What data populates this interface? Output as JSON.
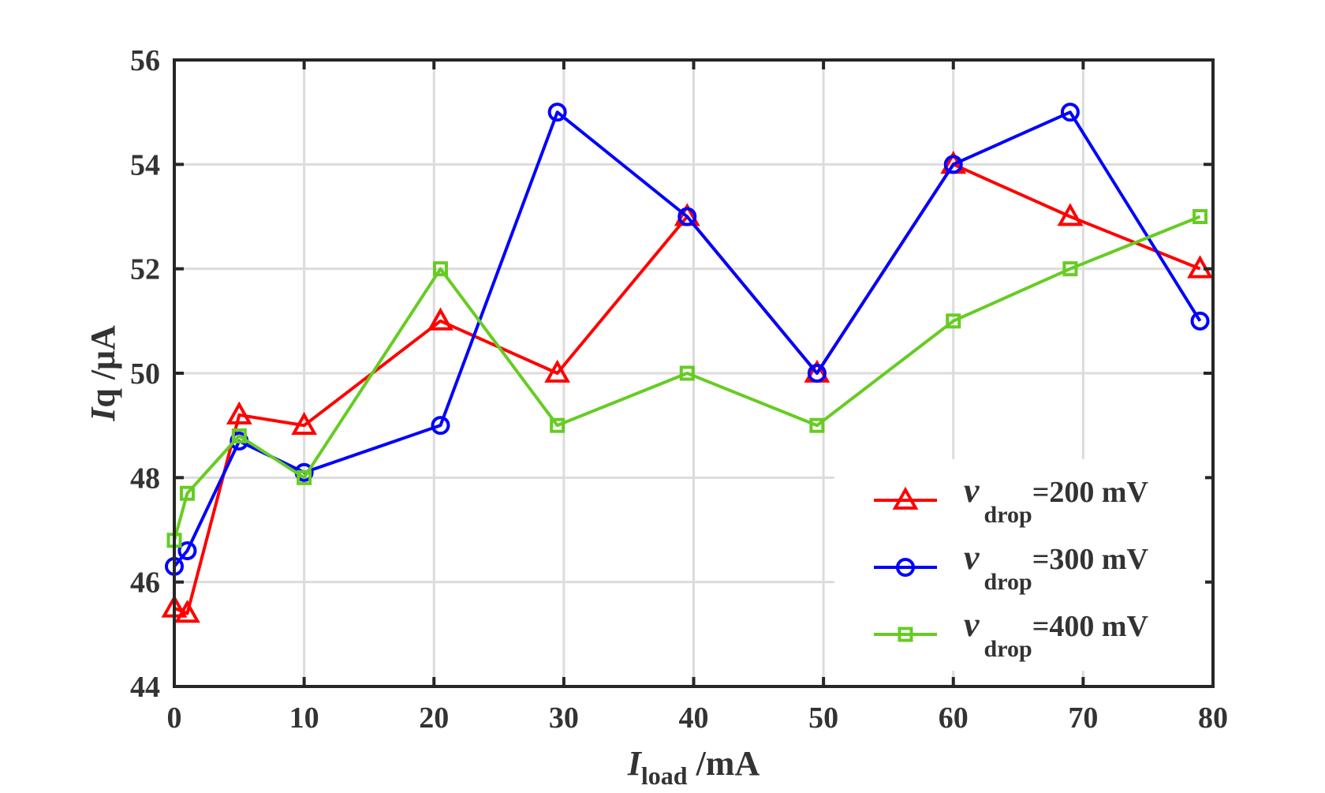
{
  "chart_data": {
    "type": "line",
    "xlabel": {
      "main": "I",
      "sub": "load",
      "unit": " /mA"
    },
    "ylabel": {
      "main": "I",
      "sub": "q",
      "unit": " /μA"
    },
    "xlim": [
      0,
      80
    ],
    "ylim": [
      44,
      56
    ],
    "xticks": [
      0,
      10,
      20,
      30,
      40,
      50,
      60,
      70,
      80
    ],
    "yticks": [
      44,
      46,
      48,
      50,
      52,
      54,
      56
    ],
    "grid": true,
    "legend_position": "lower-right",
    "series": [
      {
        "name": "v_drop=200 mV",
        "legend": {
          "main": "v",
          "sub": "drop",
          "rest": "=200 mV"
        },
        "color": "#ff0000",
        "marker": "triangle",
        "x": [
          0,
          1,
          5,
          10,
          20.5,
          29.5,
          39.5,
          49.5,
          60,
          69,
          79
        ],
        "y": [
          45.5,
          45.4,
          49.2,
          49,
          51,
          50,
          53,
          50,
          54,
          53,
          52
        ]
      },
      {
        "name": "v_drop=300 mV",
        "legend": {
          "main": "v",
          "sub": "drop",
          "rest": "=300 mV"
        },
        "color": "#0000ff",
        "marker": "circle",
        "x": [
          0,
          1,
          5,
          10,
          20.5,
          29.5,
          39.5,
          49.5,
          60,
          69,
          79
        ],
        "y": [
          46.3,
          46.6,
          48.7,
          48.1,
          49,
          55,
          53,
          50,
          54,
          55,
          51
        ]
      },
      {
        "name": "v_drop=400 mV",
        "legend": {
          "main": "v",
          "sub": "drop",
          "rest": "=400 mV"
        },
        "color": "#66cc22",
        "marker": "square",
        "x": [
          0,
          1,
          5,
          10,
          20.5,
          29.5,
          39.5,
          49.5,
          60,
          69,
          79
        ],
        "y": [
          46.8,
          47.7,
          48.8,
          48,
          52,
          49,
          50,
          49,
          51,
          52,
          53
        ]
      }
    ]
  }
}
